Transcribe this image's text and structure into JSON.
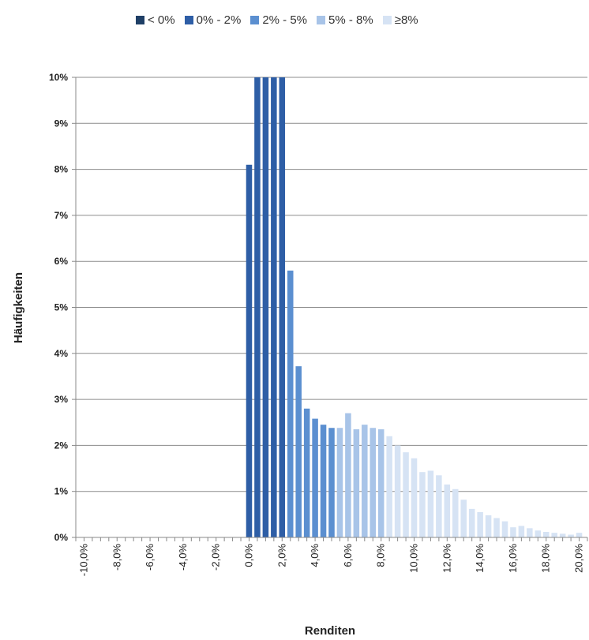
{
  "chart_data": {
    "type": "bar",
    "title": "",
    "xlabel": "Renditen",
    "ylabel": "Häufigkeiten",
    "ylim": [
      0,
      10
    ],
    "xlim": [
      -10.5,
      20.5
    ],
    "grid": true,
    "legend_position": "top",
    "y_tick_labels": [
      "0%",
      "1%",
      "2%",
      "3%",
      "4%",
      "5%",
      "6%",
      "7%",
      "8%",
      "9%",
      "10%"
    ],
    "x_tick_labels": [
      "-10,0%",
      "-8,0%",
      "-6,0%",
      "-4,0%",
      "-2,0%",
      "0,0%",
      "2,0%",
      "4,0%",
      "6,0%",
      "8,0%",
      "10,0%",
      "12,0%",
      "14,0%",
      "16,0%",
      "18,0%",
      "20,0%"
    ],
    "x_tick_values": [
      -10,
      -8,
      -6,
      -4,
      -2,
      0,
      2,
      4,
      6,
      8,
      10,
      12,
      14,
      16,
      18,
      20
    ],
    "bin_width": 0.5,
    "series": [
      {
        "name": "< 0%",
        "color": "#1f3f66",
        "x": [
          -10,
          -9.5,
          -9,
          -8.5,
          -8,
          -7.5,
          -7,
          -6.5,
          -6,
          -5.5,
          -5,
          -4.5,
          -4,
          -3.5,
          -3,
          -2.5,
          -2,
          -1.5,
          -1,
          -0.5
        ],
        "values": [
          0,
          0,
          0,
          0,
          0,
          0,
          0,
          0,
          0,
          0,
          0,
          0,
          0,
          0,
          0,
          0,
          0,
          0,
          0,
          0
        ]
      },
      {
        "name": "0% - 2%",
        "color": "#2e5ea6",
        "x": [
          0,
          0.5,
          1,
          1.5,
          2
        ],
        "values": [
          8.1,
          10,
          10,
          10,
          10
        ]
      },
      {
        "name": "2% - 5%",
        "color": "#5b8fd0",
        "x": [
          2.5,
          3,
          3.5,
          4,
          4.5,
          5
        ],
        "values": [
          5.8,
          3.72,
          2.8,
          2.58,
          2.45,
          2.38
        ]
      },
      {
        "name": "5% - 8%",
        "color": "#a8c4e8",
        "x": [
          5.5,
          6,
          6.5,
          7,
          7.5,
          8
        ],
        "values": [
          2.38,
          2.7,
          2.35,
          2.45,
          2.38,
          2.35
        ]
      },
      {
        "name": "≥8%",
        "color": "#d6e3f4",
        "x": [
          8.5,
          9,
          9.5,
          10,
          10.5,
          11,
          11.5,
          12,
          12.5,
          13,
          13.5,
          14,
          14.5,
          15,
          15.5,
          16,
          16.5,
          17,
          17.5,
          18,
          18.5,
          19,
          19.5,
          20
        ],
        "values": [
          2.2,
          2.0,
          1.85,
          1.72,
          1.42,
          1.45,
          1.35,
          1.15,
          1.05,
          0.82,
          0.62,
          0.55,
          0.48,
          0.42,
          0.35,
          0.22,
          0.25,
          0.2,
          0.15,
          0.12,
          0.1,
          0.08,
          0.06,
          0.1
        ]
      }
    ]
  }
}
